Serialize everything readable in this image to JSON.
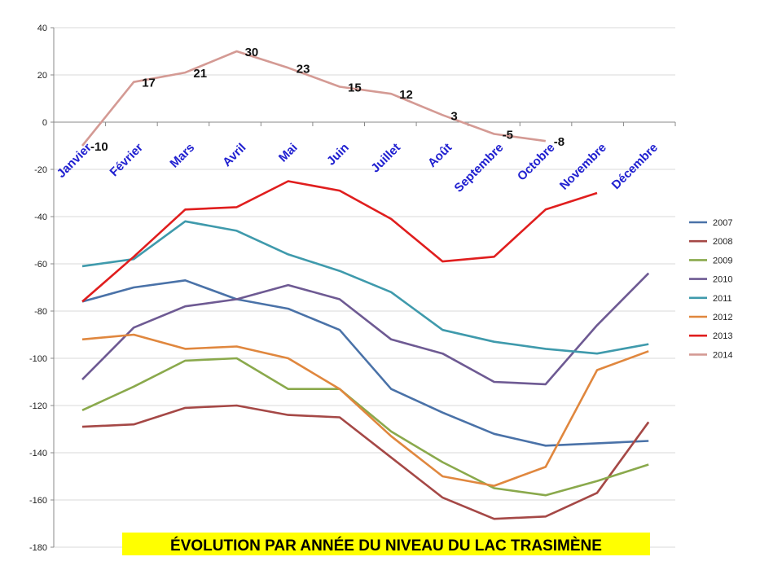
{
  "chart_data": {
    "type": "line",
    "title": "ÉVOLUTION PAR ANNÉE DU NIVEAU DU LAC TRASIMÈNE",
    "categories": [
      "Janvier",
      "Février",
      "Mars",
      "Avril",
      "Mai",
      "Juin",
      "Juillet",
      "Août",
      "Septembre",
      "Octobre",
      "Novembre",
      "Décembre"
    ],
    "ylim": [
      -180,
      40
    ],
    "yticks": [
      40,
      20,
      0,
      -20,
      -40,
      -60,
      -80,
      -100,
      -120,
      -140,
      -160,
      -180
    ],
    "grid": true,
    "legend_position": "right",
    "series": [
      {
        "name": "2007",
        "color": "#4a72a8",
        "values": [
          -76,
          -70,
          -67,
          -75,
          -79,
          -88,
          -113,
          -123,
          -132,
          -137,
          -136,
          -135
        ]
      },
      {
        "name": "2008",
        "color": "#a54846",
        "values": [
          -129,
          -128,
          -121,
          -120,
          -124,
          -125,
          -142,
          -159,
          -168,
          -167,
          -157,
          -127
        ]
      },
      {
        "name": "2009",
        "color": "#8aa94c",
        "values": [
          -122,
          -112,
          -101,
          -100,
          -113,
          -113,
          -131,
          -144,
          -155,
          -158,
          -152,
          -145
        ]
      },
      {
        "name": "2010",
        "color": "#6e5a93",
        "values": [
          -109,
          -87,
          -78,
          -75,
          -69,
          -75,
          -92,
          -98,
          -110,
          -111,
          -86,
          -64
        ]
      },
      {
        "name": "2011",
        "color": "#3f9aac",
        "values": [
          -61,
          -58,
          -42,
          -46,
          -56,
          -63,
          -72,
          -88,
          -93,
          -96,
          -98,
          -94
        ]
      },
      {
        "name": "2012",
        "color": "#e0873e",
        "values": [
          -92,
          -90,
          -96,
          -95,
          -100,
          -113,
          -133,
          -150,
          -154,
          -146,
          -105,
          -97
        ]
      },
      {
        "name": "2013",
        "color": "#e01e1e",
        "values": [
          -76,
          -57,
          -37,
          -36,
          -25,
          -29,
          -41,
          -59,
          -57,
          -37,
          -30,
          null
        ]
      },
      {
        "name": "2014",
        "color": "#d49a94",
        "values": [
          -10,
          17,
          21,
          30,
          23,
          15,
          12,
          3,
          -5,
          -8,
          null,
          null
        ]
      }
    ],
    "data_labels": {
      "series": "2014",
      "labels": [
        "-10",
        "17",
        "21",
        "30",
        "23",
        "15",
        "12",
        "3",
        "-5",
        "-8"
      ]
    }
  }
}
